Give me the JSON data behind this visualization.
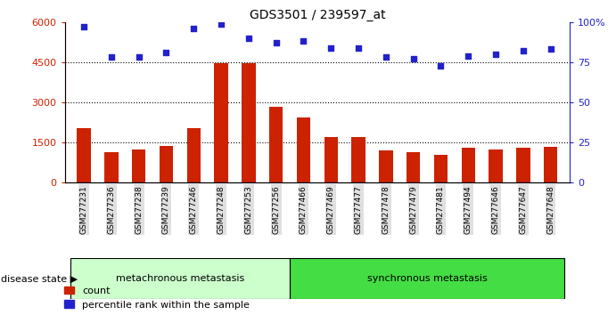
{
  "title": "GDS3501 / 239597_at",
  "samples": [
    "GSM277231",
    "GSM277236",
    "GSM277238",
    "GSM277239",
    "GSM277246",
    "GSM277248",
    "GSM277253",
    "GSM277256",
    "GSM277466",
    "GSM277469",
    "GSM277477",
    "GSM277478",
    "GSM277479",
    "GSM277481",
    "GSM277494",
    "GSM277646",
    "GSM277647",
    "GSM277648"
  ],
  "counts": [
    2050,
    1150,
    1250,
    1380,
    2050,
    4450,
    4480,
    2850,
    2450,
    1700,
    1700,
    1200,
    1150,
    1050,
    1300,
    1250,
    1300,
    1350
  ],
  "percentiles": [
    97,
    78,
    78,
    81,
    96,
    99,
    90,
    87,
    88,
    84,
    84,
    78,
    77,
    73,
    79,
    80,
    82,
    83
  ],
  "group1_label": "metachronous metastasis",
  "group2_label": "synchronous metastasis",
  "group1_count": 8,
  "group2_count": 10,
  "ylim_left": [
    0,
    6000
  ],
  "ylim_right": [
    0,
    100
  ],
  "yticks_left": [
    0,
    1500,
    3000,
    4500,
    6000
  ],
  "yticks_right": [
    0,
    25,
    50,
    75,
    100
  ],
  "bar_color": "#cc2200",
  "dot_color": "#2222cc",
  "group1_color": "#ccffcc",
  "group2_color": "#44dd44",
  "legend_count_label": "count",
  "legend_pct_label": "percentile rank within the sample",
  "disease_state_label": "disease state"
}
